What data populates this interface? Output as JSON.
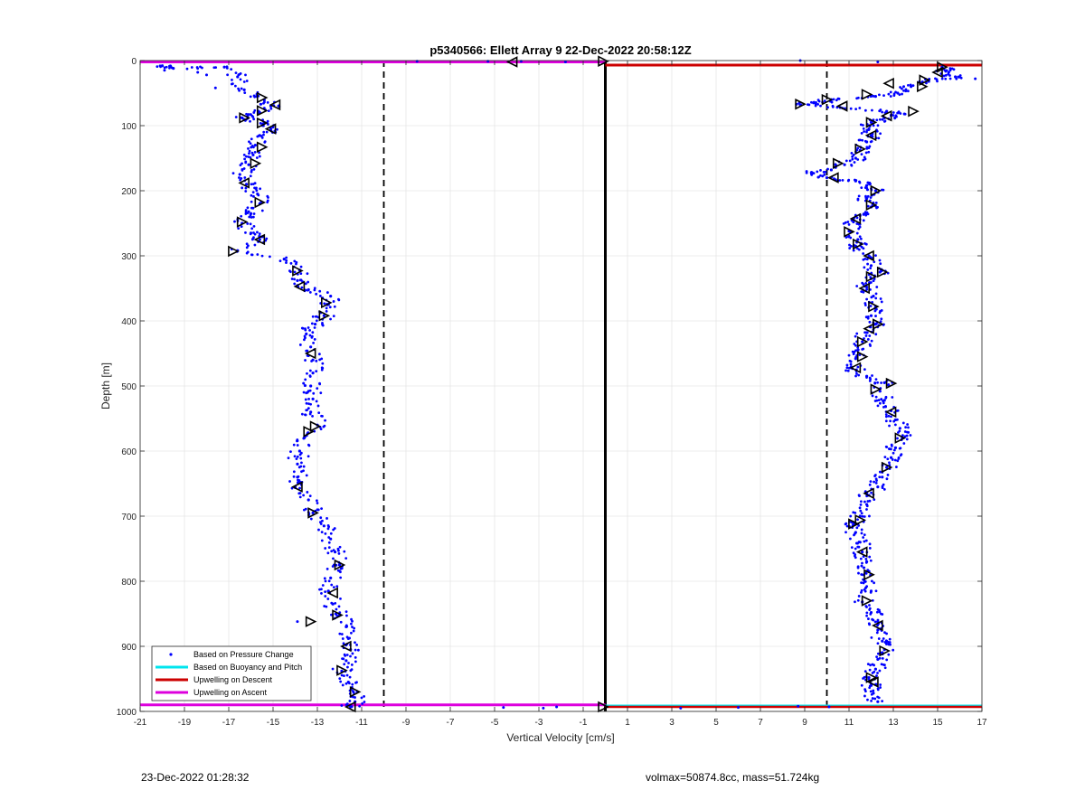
{
  "chart_data": {
    "type": "scatter",
    "title": "p5340566: Ellett Array 9 22-Dec-2022 20:58:12Z",
    "xlabel": "Vertical Velocity [cm/s]",
    "ylabel": "Depth [m]",
    "xlim": [
      -21,
      17
    ],
    "ylim": [
      0,
      1000
    ],
    "y_reversed": true,
    "grid": true,
    "xticks": [
      -21,
      -19,
      -17,
      -15,
      -13,
      -11,
      -9,
      -7,
      -5,
      -3,
      -1,
      1,
      3,
      5,
      7,
      9,
      11,
      13,
      15,
      17
    ],
    "yticks": [
      0,
      100,
      200,
      300,
      400,
      500,
      600,
      700,
      800,
      900,
      1000
    ],
    "reference_lines": {
      "dashed_x": [
        -10,
        10
      ],
      "solid_x": 0,
      "descent_depth": 7,
      "ascent_depth": 2,
      "bottom_ascent_depth": 990,
      "bottom_descent_depth": 993,
      "bottom_buoyancy_depth": 991
    },
    "legend": {
      "placement": "bottom-left",
      "entries": [
        {
          "label": "Based on Pressure Change",
          "color": "#0000ff",
          "marker": "dot"
        },
        {
          "label": "Based on Buoyancy and Pitch",
          "color": "#00e5ee",
          "marker": "line"
        },
        {
          "label": "Upwelling on Descent",
          "color": "#cc0000",
          "marker": "line"
        },
        {
          "label": "Upwelling on Ascent",
          "color": "#dd00dd",
          "marker": "line"
        }
      ]
    },
    "series": [
      {
        "name": "Based on Pressure Change",
        "color": "#0000ff",
        "profiles": [
          {
            "segment": "descent",
            "points": [
              [
                -20.0,
                8
              ],
              [
                -19.5,
                12
              ],
              [
                -17.2,
                10
              ],
              [
                -16.6,
                25
              ],
              [
                -16.3,
                45
              ],
              [
                -15.4,
                60
              ],
              [
                -15.1,
                70
              ],
              [
                -15.6,
                80
              ],
              [
                -16.4,
                88
              ],
              [
                -15.4,
                95
              ],
              [
                -15.1,
                105
              ],
              [
                -15.6,
                115
              ],
              [
                -15.8,
                130
              ],
              [
                -15.9,
                145
              ],
              [
                -16.1,
                160
              ],
              [
                -16.5,
                175
              ],
              [
                -16.2,
                190
              ],
              [
                -15.7,
                205
              ],
              [
                -15.6,
                220
              ],
              [
                -16.0,
                235
              ],
              [
                -16.4,
                250
              ],
              [
                -16.0,
                265
              ],
              [
                -15.6,
                275
              ],
              [
                -16.6,
                292
              ],
              [
                -14.5,
                305
              ],
              [
                -13.8,
                322
              ],
              [
                -13.9,
                338
              ],
              [
                -13.4,
                352
              ],
              [
                -12.4,
                362
              ],
              [
                -12.5,
                375
              ],
              [
                -12.7,
                392
              ],
              [
                -13.1,
                405
              ],
              [
                -13.5,
                420
              ],
              [
                -13.3,
                440
              ],
              [
                -13.2,
                460
              ],
              [
                -13.2,
                480
              ],
              [
                -13.3,
                500
              ],
              [
                -13.2,
                520
              ],
              [
                -13.3,
                540
              ],
              [
                -13.0,
                560
              ],
              [
                -13.6,
                580
              ],
              [
                -13.8,
                600
              ],
              [
                -13.9,
                620
              ],
              [
                -13.9,
                640
              ],
              [
                -14.0,
                655
              ],
              [
                -13.4,
                675
              ],
              [
                -13.2,
                695
              ],
              [
                -12.7,
                715
              ],
              [
                -12.4,
                735
              ],
              [
                -12.2,
                755
              ],
              [
                -12.0,
                775
              ],
              [
                -12.4,
                795
              ],
              [
                -12.5,
                815
              ],
              [
                -12.3,
                835
              ],
              [
                -12.0,
                852
              ],
              [
                -11.7,
                870
              ],
              [
                -11.6,
                888
              ],
              [
                -11.5,
                905
              ],
              [
                -11.7,
                922
              ],
              [
                -11.9,
                938
              ],
              [
                -11.6,
                955
              ],
              [
                -11.2,
                970
              ],
              [
                -11.3,
                985
              ],
              [
                -11.5,
                993
              ]
            ]
          },
          {
            "segment": "ascent",
            "points": [
              [
                15.2,
                10
              ],
              [
                15.5,
                18
              ],
              [
                15.8,
                25
              ],
              [
                14.6,
                32
              ],
              [
                13.8,
                40
              ],
              [
                13.2,
                50
              ],
              [
                12.2,
                55
              ],
              [
                10.2,
                60
              ],
              [
                9.4,
                65
              ],
              [
                8.8,
                68
              ],
              [
                10.6,
                72
              ],
              [
                12.7,
                78
              ],
              [
                13.5,
                82
              ],
              [
                12.6,
                88
              ],
              [
                12.0,
                95
              ],
              [
                11.9,
                105
              ],
              [
                12.0,
                115
              ],
              [
                11.8,
                125
              ],
              [
                11.5,
                138
              ],
              [
                11.3,
                150
              ],
              [
                10.8,
                160
              ],
              [
                10.2,
                168
              ],
              [
                9.3,
                172
              ],
              [
                10.0,
                180
              ],
              [
                11.3,
                185
              ],
              [
                11.8,
                192
              ],
              [
                12.2,
                200
              ],
              [
                11.8,
                212
              ],
              [
                12.0,
                225
              ],
              [
                11.5,
                238
              ],
              [
                11.2,
                248
              ],
              [
                11.0,
                262
              ],
              [
                11.4,
                275
              ],
              [
                11.3,
                285
              ],
              [
                11.9,
                300
              ],
              [
                12.0,
                315
              ],
              [
                12.4,
                325
              ],
              [
                12.0,
                335
              ],
              [
                11.8,
                348
              ],
              [
                12.1,
                362
              ],
              [
                12.2,
                378
              ],
              [
                12.0,
                392
              ],
              [
                12.2,
                405
              ],
              [
                11.8,
                418
              ],
              [
                11.6,
                432
              ],
              [
                11.4,
                445
              ],
              [
                11.3,
                458
              ],
              [
                11.1,
                472
              ],
              [
                11.8,
                485
              ],
              [
                12.6,
                495
              ],
              [
                12.4,
                508
              ],
              [
                12.6,
                522
              ],
              [
                12.9,
                538
              ],
              [
                13.1,
                552
              ],
              [
                13.3,
                565
              ],
              [
                13.4,
                580
              ],
              [
                13.1,
                595
              ],
              [
                12.9,
                610
              ],
              [
                12.7,
                625
              ],
              [
                12.5,
                640
              ],
              [
                12.3,
                655
              ],
              [
                11.9,
                668
              ],
              [
                11.8,
                682
              ],
              [
                11.5,
                700
              ],
              [
                11.2,
                712
              ],
              [
                11.3,
                725
              ],
              [
                11.5,
                740
              ],
              [
                11.6,
                755
              ],
              [
                11.8,
                770
              ],
              [
                11.9,
                785
              ],
              [
                11.7,
                800
              ],
              [
                12.0,
                815
              ],
              [
                11.6,
                832
              ],
              [
                12.0,
                848
              ],
              [
                12.3,
                862
              ],
              [
                12.3,
                875
              ],
              [
                12.5,
                892
              ],
              [
                12.6,
                905
              ],
              [
                12.3,
                920
              ],
              [
                12.2,
                935
              ],
              [
                11.9,
                948
              ],
              [
                12.0,
                960
              ],
              [
                12.1,
                972
              ],
              [
                12.3,
                985
              ]
            ]
          }
        ]
      },
      {
        "name": "averaged markers",
        "color": "#000000",
        "points": [
          [
            -4.2,
            2
          ],
          [
            -0.1,
            1
          ],
          [
            15.2,
            10
          ],
          [
            15.0,
            18
          ],
          [
            14.4,
            30
          ],
          [
            14.3,
            40
          ],
          [
            12.8,
            35
          ],
          [
            11.8,
            52
          ],
          [
            10.0,
            60
          ],
          [
            10.7,
            70
          ],
          [
            8.8,
            67
          ],
          [
            13.9,
            78
          ],
          [
            12.7,
            85
          ],
          [
            -15.5,
            57
          ],
          [
            -15.5,
            77
          ],
          [
            -14.9,
            68
          ],
          [
            -16.3,
            88
          ],
          [
            -15.5,
            96
          ],
          [
            -15.1,
            105
          ],
          [
            -15.5,
            133
          ],
          [
            -15.8,
            158
          ],
          [
            -16.3,
            188
          ],
          [
            -15.6,
            218
          ],
          [
            -16.4,
            248
          ],
          [
            -15.6,
            275
          ],
          [
            -16.8,
            293
          ],
          [
            -13.9,
            323
          ],
          [
            -13.8,
            347
          ],
          [
            -12.6,
            372
          ],
          [
            -12.7,
            392
          ],
          [
            -13.3,
            450
          ],
          [
            -13.1,
            562
          ],
          [
            -13.4,
            570
          ],
          [
            -13.9,
            655
          ],
          [
            -13.2,
            695
          ],
          [
            -12.0,
            775
          ],
          [
            -12.3,
            818
          ],
          [
            -12.1,
            852
          ],
          [
            -13.3,
            862
          ],
          [
            -11.7,
            900
          ],
          [
            -11.9,
            937
          ],
          [
            -11.3,
            970
          ],
          [
            -11.5,
            993
          ],
          [
            -0.1,
            993
          ],
          [
            12.0,
            95
          ],
          [
            12.0,
            115
          ],
          [
            11.5,
            136
          ],
          [
            10.5,
            158
          ],
          [
            10.3,
            180
          ],
          [
            12.2,
            200
          ],
          [
            12.0,
            222
          ],
          [
            11.3,
            243
          ],
          [
            11.0,
            263
          ],
          [
            11.4,
            282
          ],
          [
            11.9,
            300
          ],
          [
            12.5,
            325
          ],
          [
            12.0,
            332
          ],
          [
            11.7,
            350
          ],
          [
            12.1,
            378
          ],
          [
            12.3,
            405
          ],
          [
            11.9,
            412
          ],
          [
            11.6,
            432
          ],
          [
            11.6,
            455
          ],
          [
            11.3,
            472
          ],
          [
            12.9,
            496
          ],
          [
            12.2,
            505
          ],
          [
            12.9,
            540
          ],
          [
            13.3,
            580
          ],
          [
            12.7,
            625
          ],
          [
            11.9,
            665
          ],
          [
            11.5,
            706
          ],
          [
            11.2,
            712
          ],
          [
            11.6,
            755
          ],
          [
            11.9,
            790
          ],
          [
            11.8,
            830
          ],
          [
            12.3,
            868
          ],
          [
            12.6,
            907
          ],
          [
            12.0,
            948
          ],
          [
            12.1,
            955
          ]
        ]
      }
    ]
  },
  "footer": {
    "timestamp": "23-Dec-2022 01:28:32",
    "info": "volmax=50874.8cc, mass=51.724kg"
  }
}
